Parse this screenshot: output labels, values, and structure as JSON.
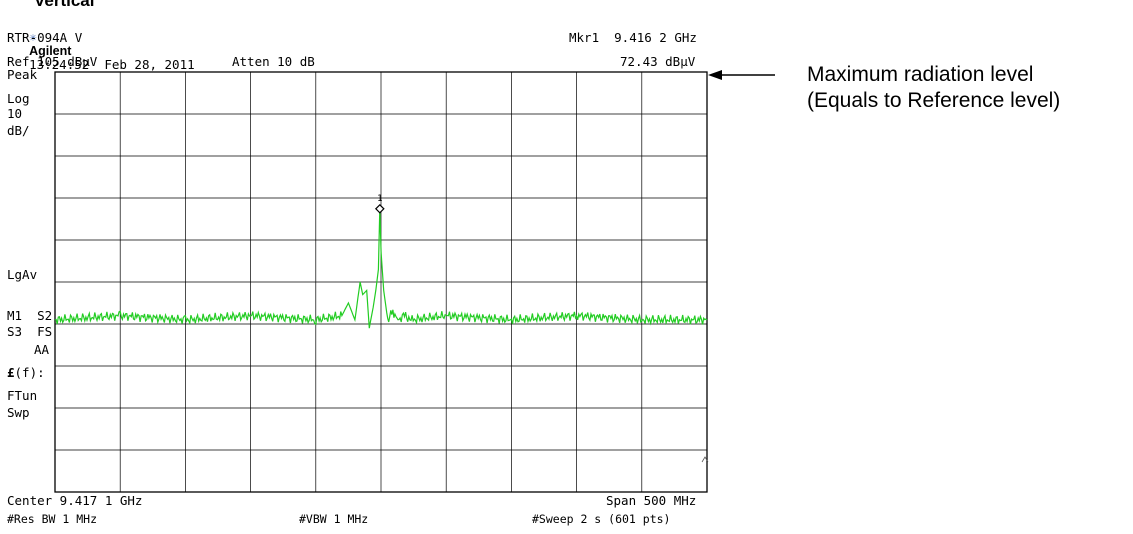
{
  "header": {
    "partial_title": "Vertical",
    "brand": "Agilent",
    "timestamp": "13:24:52  Feb 28, 2011",
    "device": "RTR-094A V",
    "marker_readout": "Mkr1  9.416 2 GHz",
    "ref_level": "Ref 105 dBμV",
    "attenuation": "Atten 10 dB",
    "marker_amplitude": "72.43 dBμV"
  },
  "left_panel": {
    "detector": "Peak",
    "scale_type": "Log",
    "scale_value": "10",
    "scale_unit": "dB/",
    "avg_mode": "LgAv",
    "m1s2": "M1  S2",
    "s3fs": "S3  FS",
    "aa": "AA",
    "ff_symbol": "£",
    "ff_suffix": "(f):",
    "ftun": "FTun",
    "swp": "Swp"
  },
  "footer": {
    "center": "Center 9.417 1 GHz",
    "span": "Span 500 MHz",
    "res_bw": "#Res BW 1 MHz",
    "vbw": "#VBW 1 MHz",
    "sweep": "#Sweep 2 s (601 pts)"
  },
  "annotation": {
    "line1": "Maximum radiation level",
    "line2": "(Equals to Reference level)"
  },
  "marker_label": "1",
  "chart_data": {
    "type": "line",
    "x_unit": "GHz",
    "y_unit": "dBμV",
    "xlim": [
      9.1671,
      9.6671
    ],
    "ylim": [
      5,
      105
    ],
    "grid": true,
    "grid_divisions": {
      "x": 10,
      "y": 10
    },
    "trace_color": "#22cc22",
    "series": [
      {
        "x": [
          9.1671,
          9.2171,
          9.2671,
          9.3171,
          9.3671,
          9.3871,
          9.3921,
          9.3971,
          9.4011,
          9.4031,
          9.4061,
          9.4081,
          9.4111,
          9.4131,
          9.4151,
          9.4162,
          9.4172,
          9.4192,
          9.4222,
          9.4262,
          9.4301,
          9.4351,
          9.4401,
          9.4671,
          9.5171,
          9.5671,
          9.6171,
          9.6671
        ],
        "y": [
          46,
          47,
          46,
          47,
          46,
          47,
          50,
          46,
          55,
          52,
          53,
          44,
          49,
          53,
          58,
          72.43,
          62,
          53,
          46,
          48,
          46,
          47,
          46,
          47,
          46,
          47,
          46,
          46
        ]
      }
    ],
    "markers": [
      {
        "label": "1",
        "x": 9.4162,
        "y": 72.43
      }
    ]
  }
}
